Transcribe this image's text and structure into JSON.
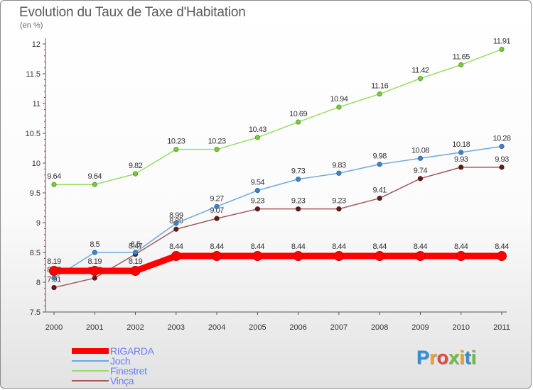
{
  "title": "Evolution du Taux de Taxe d'Habitation",
  "unit_label": "(en %)",
  "logo_text": "Proxiti",
  "chart_data": {
    "type": "line",
    "title": "Evolution du Taux de Taxe d'Habitation",
    "ylabel": "(en %)",
    "x": [
      "2000",
      "2001",
      "2002",
      "2003",
      "2004",
      "2005",
      "2006",
      "2007",
      "2008",
      "2009",
      "2010",
      "2011"
    ],
    "ylim": [
      7.5,
      12
    ],
    "yticks": [
      "7.5",
      "8",
      "8.5",
      "9",
      "9.5",
      "10",
      "10.5",
      "11",
      "11.5",
      "12"
    ],
    "grid": false,
    "legend_position": "bottom-left",
    "series": [
      {
        "name": "RIGARDA",
        "color": "#ff0000",
        "values": [
          8.19,
          8.19,
          8.19,
          8.44,
          8.44,
          8.44,
          8.44,
          8.44,
          8.44,
          8.44,
          8.44,
          8.44
        ],
        "labels": [
          "8.19",
          "8.19",
          "8.19",
          "8.44",
          "8.44",
          "8.44",
          "8.44",
          "8.44",
          "8.44",
          "8.44",
          "8.44",
          "8.44"
        ]
      },
      {
        "name": "Joch",
        "color": "#6fa8dc",
        "values": [
          8.07,
          8.5,
          8.5,
          8.99,
          9.27,
          9.54,
          9.73,
          9.83,
          9.98,
          10.08,
          10.18,
          10.28
        ],
        "labels": [
          "8.07",
          "8.5",
          "8.5",
          "8.99",
          "9.27",
          "9.54",
          "9.73",
          "9.83",
          "9.98",
          "10.08",
          "10.18",
          "10.28"
        ]
      },
      {
        "name": "Finestret",
        "color": "#99dd66",
        "values": [
          9.64,
          9.64,
          9.82,
          10.23,
          10.23,
          10.43,
          10.69,
          10.94,
          11.16,
          11.42,
          11.65,
          11.91
        ],
        "labels": [
          "9.64",
          "9.64",
          "9.82",
          "10.23",
          "10.23",
          "10.43",
          "10.69",
          "10.94",
          "11.16",
          "11.42",
          "11.65",
          "11.91"
        ]
      },
      {
        "name": "Vinça",
        "color": "#a05a5a",
        "values": [
          7.91,
          8.07,
          8.47,
          8.89,
          9.07,
          9.23,
          9.23,
          9.23,
          9.41,
          9.74,
          9.93,
          9.93
        ],
        "labels": [
          "7.91",
          "8.07",
          "8.47",
          "8.89",
          "9.07",
          "9.23",
          "9.23",
          "9.23",
          "9.41",
          "9.74",
          "9.93",
          "9.93"
        ]
      }
    ]
  }
}
